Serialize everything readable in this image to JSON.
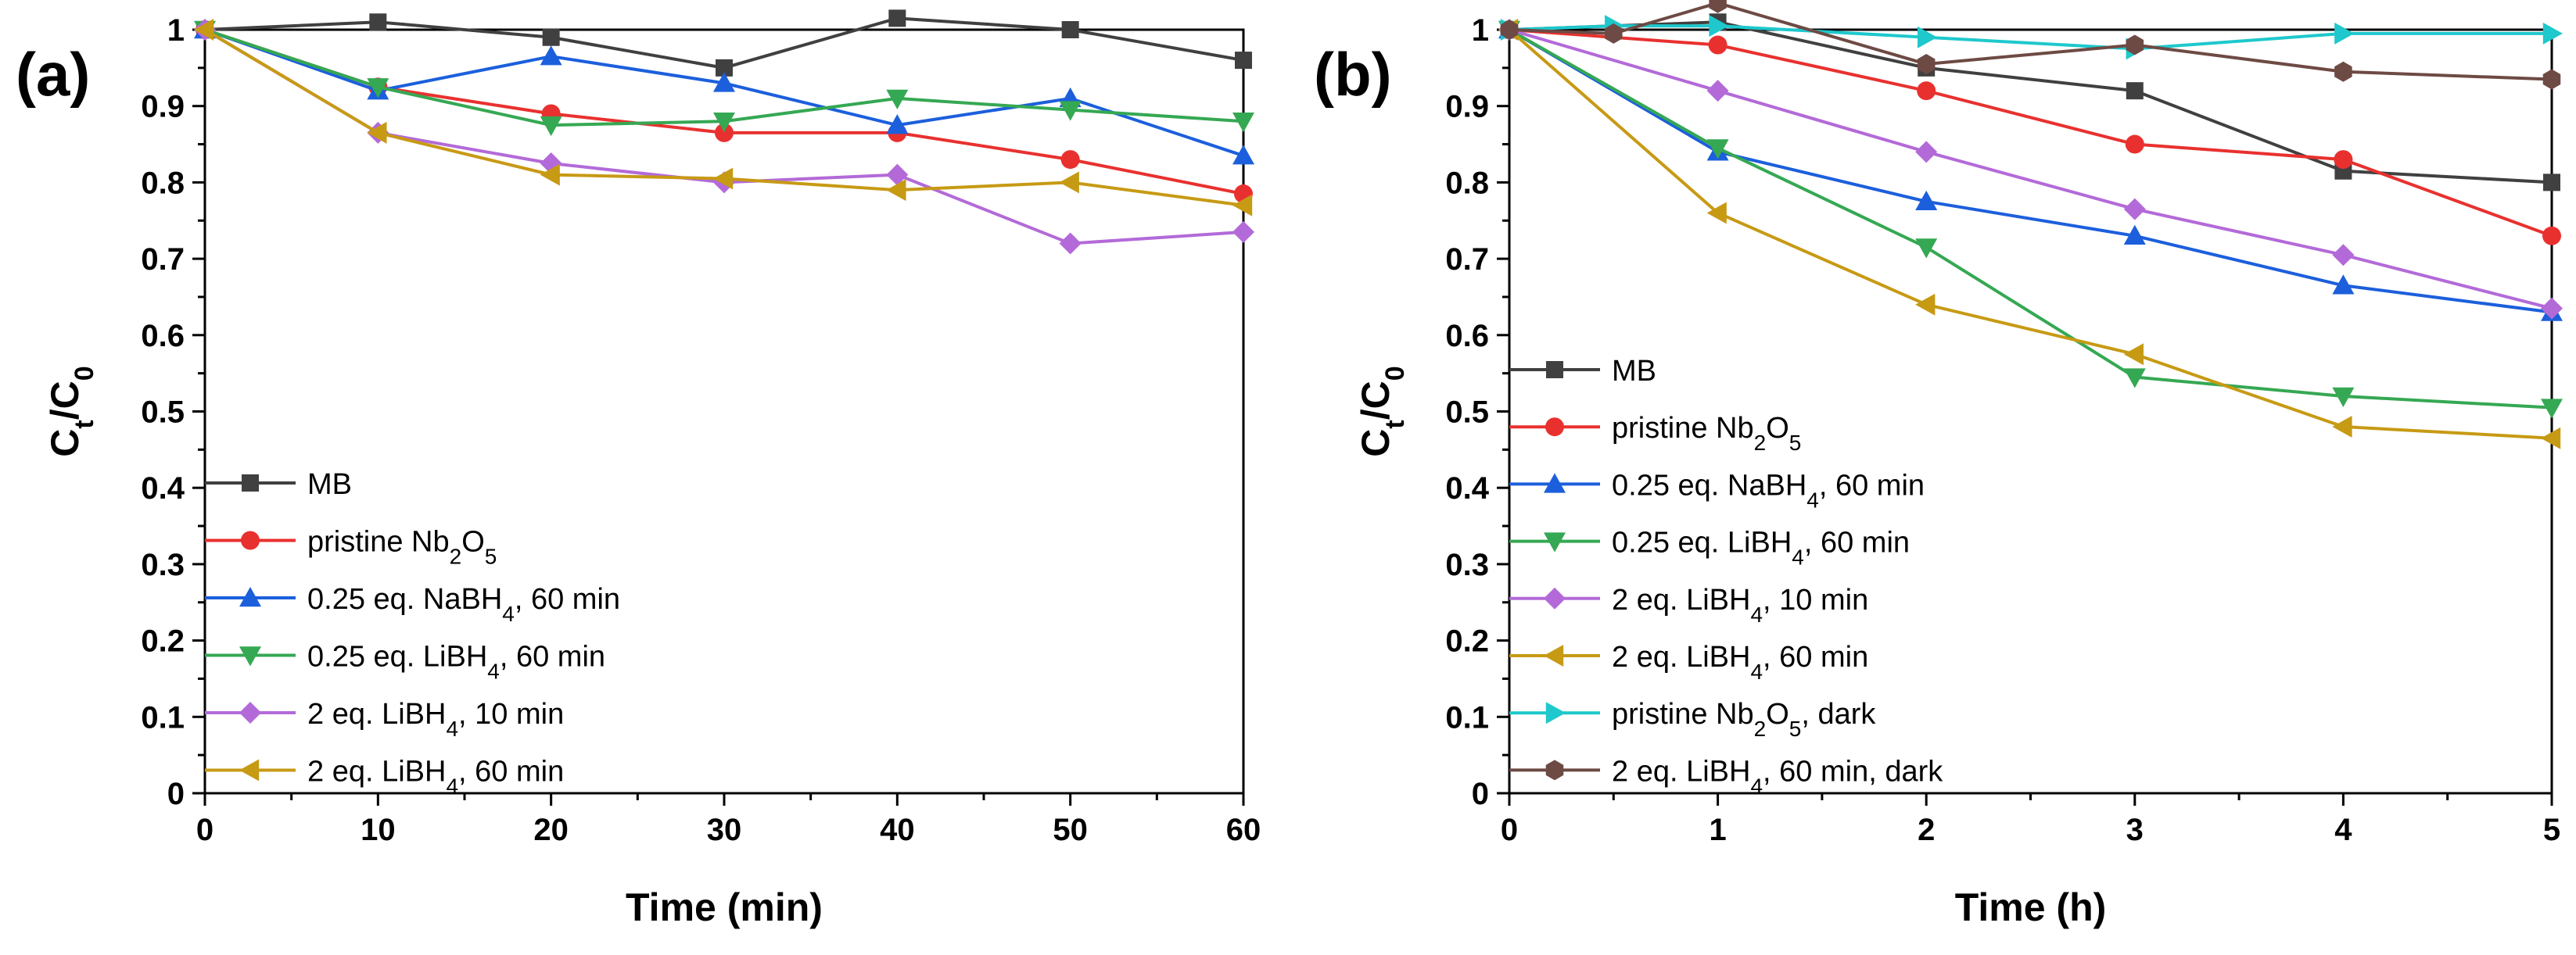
{
  "chart_data": [
    {
      "type": "line",
      "panel_label": "(a)",
      "xlabel": "Time (min)",
      "ylabel": {
        "main": "C",
        "sub1": "t",
        "mid": "/C",
        "sub2": "0"
      },
      "xlim": [
        0,
        60
      ],
      "ylim": [
        0,
        1
      ],
      "xticks": [
        0,
        10,
        20,
        30,
        40,
        50,
        60
      ],
      "yticks": [
        0,
        0.1,
        0.2,
        0.3,
        0.4,
        0.5,
        0.6,
        0.7,
        0.8,
        0.9,
        1
      ],
      "legend_position": "bottom-left",
      "series": [
        {
          "name": "MB",
          "label_parts": [
            [
              "MB",
              ""
            ]
          ],
          "color": "#404040",
          "marker": "square",
          "x": [
            0,
            10,
            20,
            30,
            40,
            50,
            60
          ],
          "y": [
            1.0,
            1.01,
            0.99,
            0.95,
            1.015,
            1.0,
            0.96
          ]
        },
        {
          "name": "pristine Nb2O5",
          "label_parts": [
            [
              "pristine Nb",
              ""
            ],
            [
              "2",
              "sub"
            ],
            [
              "O",
              ""
            ],
            [
              "5",
              "sub"
            ]
          ],
          "color": "#e8312f",
          "marker": "circle",
          "x": [
            0,
            10,
            20,
            30,
            40,
            50,
            60
          ],
          "y": [
            1.0,
            0.925,
            0.89,
            0.865,
            0.865,
            0.83,
            0.785
          ]
        },
        {
          "name": "0.25 eq. NaBH4, 60 min",
          "label_parts": [
            [
              "0.25 eq. NaBH",
              ""
            ],
            [
              "4",
              "sub"
            ],
            [
              ", 60 min",
              ""
            ]
          ],
          "color": "#1c5fdc",
          "marker": "triangle-up",
          "x": [
            0,
            10,
            20,
            30,
            40,
            50,
            60
          ],
          "y": [
            1.0,
            0.92,
            0.965,
            0.93,
            0.875,
            0.91,
            0.835
          ]
        },
        {
          "name": "0.25 eq. LiBH4, 60 min",
          "label_parts": [
            [
              "0.25 eq. LiBH",
              ""
            ],
            [
              "4",
              "sub"
            ],
            [
              ", 60 min",
              ""
            ]
          ],
          "color": "#35a853",
          "marker": "triangle-down",
          "x": [
            0,
            10,
            20,
            30,
            40,
            50,
            60
          ],
          "y": [
            1.0,
            0.925,
            0.875,
            0.88,
            0.91,
            0.895,
            0.88
          ]
        },
        {
          "name": "2 eq. LiBH4, 10 min",
          "label_parts": [
            [
              "2 eq. LiBH",
              ""
            ],
            [
              "4",
              "sub"
            ],
            [
              ", 10 min",
              ""
            ]
          ],
          "color": "#b36ad8",
          "marker": "diamond",
          "x": [
            0,
            10,
            20,
            30,
            40,
            50,
            60
          ],
          "y": [
            1.0,
            0.865,
            0.825,
            0.8,
            0.81,
            0.72,
            0.735
          ]
        },
        {
          "name": "2 eq. LiBH4, 60 min",
          "label_parts": [
            [
              "2 eq. LiBH",
              ""
            ],
            [
              "4",
              "sub"
            ],
            [
              ", 60 min",
              ""
            ]
          ],
          "color": "#c79a14",
          "marker": "triangle-left",
          "x": [
            0,
            10,
            20,
            30,
            40,
            50,
            60
          ],
          "y": [
            1.0,
            0.865,
            0.81,
            0.805,
            0.79,
            0.8,
            0.77
          ]
        }
      ]
    },
    {
      "type": "line",
      "panel_label": "(b)",
      "xlabel": "Time (h)",
      "ylabel": {
        "main": "C",
        "sub1": "t",
        "mid": "/C",
        "sub2": "0"
      },
      "xlim": [
        0,
        5
      ],
      "ylim": [
        0,
        1
      ],
      "xticks": [
        0,
        1,
        2,
        3,
        4,
        5
      ],
      "yticks": [
        0,
        0.1,
        0.2,
        0.3,
        0.4,
        0.5,
        0.6,
        0.7,
        0.8,
        0.9,
        1
      ],
      "legend_position": "bottom-left",
      "series": [
        {
          "name": "MB",
          "label_parts": [
            [
              "MB",
              ""
            ]
          ],
          "color": "#404040",
          "marker": "square",
          "x": [
            0,
            1,
            2,
            3,
            4,
            5
          ],
          "y": [
            1.0,
            1.01,
            0.95,
            0.92,
            0.815,
            0.8
          ]
        },
        {
          "name": "pristine Nb2O5",
          "label_parts": [
            [
              "pristine Nb",
              ""
            ],
            [
              "2",
              "sub"
            ],
            [
              "O",
              ""
            ],
            [
              "5",
              "sub"
            ]
          ],
          "color": "#e8312f",
          "marker": "circle",
          "x": [
            0,
            1,
            2,
            3,
            4,
            5
          ],
          "y": [
            1.0,
            0.98,
            0.92,
            0.85,
            0.83,
            0.73
          ]
        },
        {
          "name": "0.25 eq. NaBH4, 60 min",
          "label_parts": [
            [
              "0.25 eq. NaBH",
              ""
            ],
            [
              "4",
              "sub"
            ],
            [
              ", 60 min",
              ""
            ]
          ],
          "color": "#1c5fdc",
          "marker": "triangle-up",
          "x": [
            0,
            1,
            2,
            3,
            4,
            5
          ],
          "y": [
            1.0,
            0.84,
            0.775,
            0.73,
            0.665,
            0.63
          ]
        },
        {
          "name": "0.25 eq. LiBH4, 60 min",
          "label_parts": [
            [
              "0.25 eq. LiBH",
              ""
            ],
            [
              "4",
              "sub"
            ],
            [
              ", 60 min",
              ""
            ]
          ],
          "color": "#35a853",
          "marker": "triangle-down",
          "x": [
            0,
            1,
            2,
            3,
            4,
            5
          ],
          "y": [
            1.0,
            0.845,
            0.715,
            0.545,
            0.52,
            0.505
          ]
        },
        {
          "name": "2 eq. LiBH4, 10 min",
          "label_parts": [
            [
              "2 eq. LiBH",
              ""
            ],
            [
              "4",
              "sub"
            ],
            [
              ", 10 min",
              ""
            ]
          ],
          "color": "#b36ad8",
          "marker": "diamond",
          "x": [
            0,
            1,
            2,
            3,
            4,
            5
          ],
          "y": [
            1.0,
            0.92,
            0.84,
            0.765,
            0.705,
            0.635
          ]
        },
        {
          "name": "2 eq. LiBH4, 60 min",
          "label_parts": [
            [
              "2 eq. LiBH",
              ""
            ],
            [
              "4",
              "sub"
            ],
            [
              ", 60 min",
              ""
            ]
          ],
          "color": "#c79a14",
          "marker": "triangle-left",
          "x": [
            0,
            1,
            2,
            3,
            4,
            5
          ],
          "y": [
            1.0,
            0.76,
            0.64,
            0.575,
            0.48,
            0.465
          ]
        },
        {
          "name": "pristine Nb2O5, dark",
          "label_parts": [
            [
              "pristine Nb",
              ""
            ],
            [
              "2",
              "sub"
            ],
            [
              "O",
              ""
            ],
            [
              "5",
              "sub"
            ],
            [
              ", dark",
              ""
            ]
          ],
          "color": "#1ec8cc",
          "marker": "triangle-right",
          "x": [
            0,
            0.5,
            1,
            2,
            3,
            4,
            5
          ],
          "y": [
            1.0,
            1.005,
            1.005,
            0.99,
            0.975,
            0.995,
            0.995
          ]
        },
        {
          "name": "2 eq. LiBH4, 60 min, dark",
          "label_parts": [
            [
              "2 eq. LiBH",
              ""
            ],
            [
              "4",
              "sub"
            ],
            [
              ", 60 min, dark",
              ""
            ]
          ],
          "color": "#6e4a44",
          "marker": "hexagon",
          "x": [
            0,
            0.5,
            1,
            2,
            3,
            4,
            5
          ],
          "y": [
            1.0,
            0.995,
            1.035,
            0.955,
            0.98,
            0.945,
            0.935
          ]
        }
      ]
    }
  ]
}
